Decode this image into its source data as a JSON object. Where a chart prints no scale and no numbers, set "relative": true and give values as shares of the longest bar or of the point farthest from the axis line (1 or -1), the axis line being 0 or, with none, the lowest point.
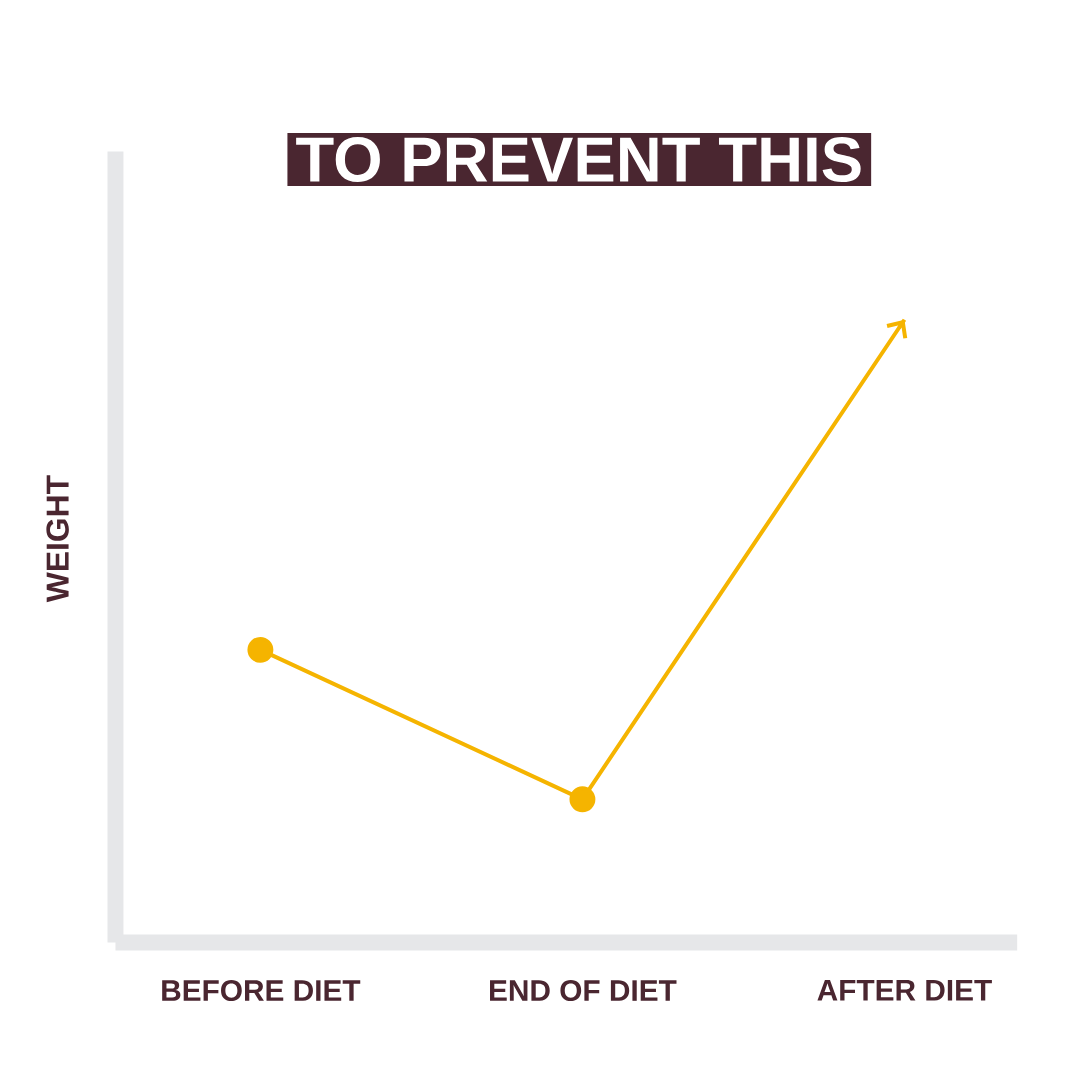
{
  "chart_data": {
    "type": "line",
    "title": "TO PREVENT THIS",
    "ylabel": "WEIGHT",
    "categories": [
      "BEFORE DIET",
      "END OF DIET",
      "AFTER DIET"
    ],
    "series": [
      {
        "color": "#f5b400",
        "values": [
          0.47,
          0.23,
          1
        ]
      }
    ],
    "relative": true,
    "marker": "circle"
  }
}
